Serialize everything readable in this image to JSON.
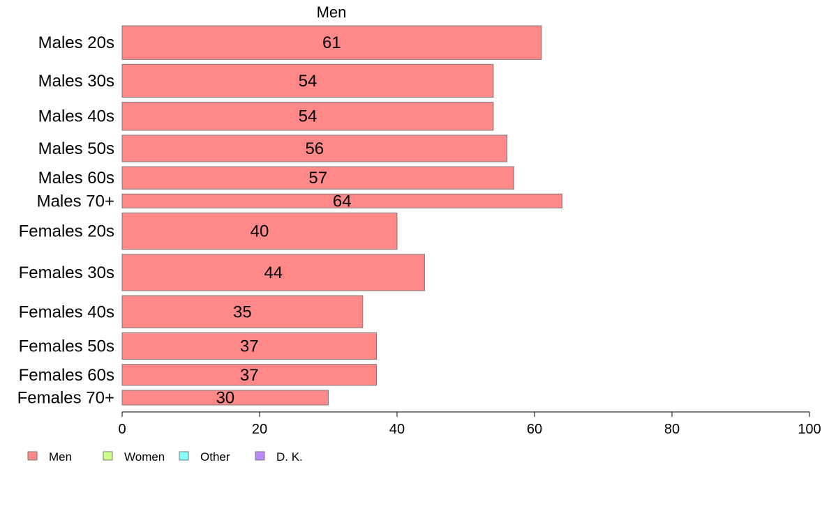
{
  "chart_data": {
    "type": "bar",
    "orientation": "horizontal",
    "title": "Men",
    "categories": [
      "Males 20s",
      "Males 30s",
      "Males 40s",
      "Males 50s",
      "Males 60s",
      "Males 70+",
      "Females 20s",
      "Females 30s",
      "Females 40s",
      "Females 50s",
      "Females 60s",
      "Females 70+"
    ],
    "series": [
      {
        "name": "Men",
        "values": [
          61,
          54,
          54,
          56,
          57,
          64,
          40,
          44,
          35,
          37,
          37,
          30
        ],
        "color": "#ff8888"
      }
    ],
    "value_labels": [
      "61",
      "54",
      "54",
      "56",
      "57",
      "64",
      "40",
      "44",
      "35",
      "37",
      "37",
      "30"
    ],
    "bar_weights": [
      48,
      47,
      40,
      38,
      32,
      20,
      52,
      52,
      46,
      38,
      30,
      21
    ],
    "xlim": [
      0,
      100
    ],
    "xticks": [
      0,
      20,
      40,
      60,
      80,
      100
    ],
    "xtick_labels": [
      "0",
      "20",
      "40",
      "60",
      "80",
      "100"
    ],
    "grid": false,
    "legend": {
      "placement": "bottom-left",
      "entries": [
        {
          "label": "Men",
          "color": "#ff8888"
        },
        {
          "label": "Women",
          "color": "#ccff88"
        },
        {
          "label": "Other",
          "color": "#88ffff"
        },
        {
          "label": "D. K.",
          "color": "#bb88ff"
        }
      ]
    }
  }
}
